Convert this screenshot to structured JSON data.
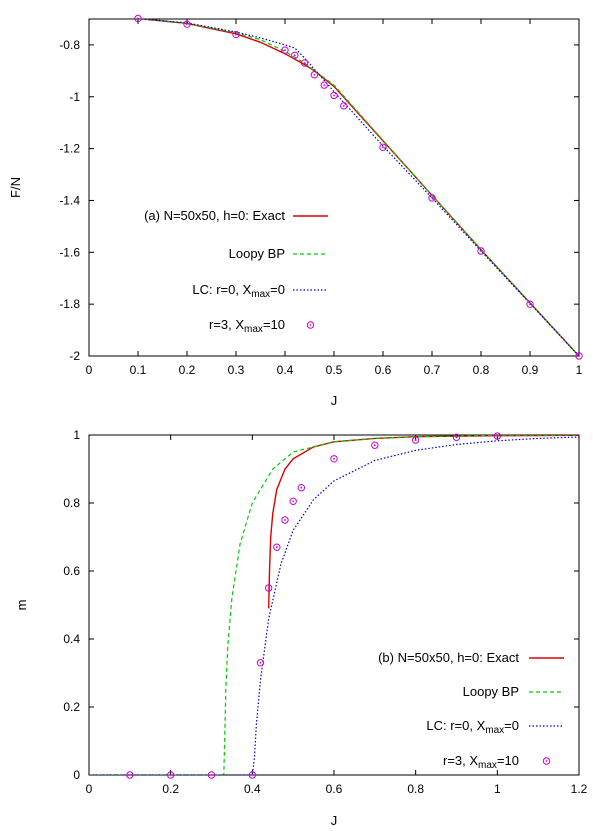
{
  "colors": {
    "exact": "#dd0000",
    "bp": "#00cc00",
    "lc0": "#0000cc",
    "lc3": "#cc00cc"
  },
  "chart_data": [
    {
      "type": "line",
      "panel": "a",
      "xlabel": "J",
      "ylabel": "F/N",
      "xlim": [
        0,
        1
      ],
      "ylim": [
        -2,
        -0.7
      ],
      "x_ticks": [
        "0",
        "0.1",
        "0.2",
        "0.3",
        "0.4",
        "0.5",
        "0.6",
        "0.7",
        "0.8",
        "0.9",
        "1"
      ],
      "x_tick_values": [
        0,
        0.1,
        0.2,
        0.3,
        0.4,
        0.5,
        0.6,
        0.7,
        0.8,
        0.9,
        1
      ],
      "y_ticks": [
        "-0.8",
        "-1",
        "-1.2",
        "-1.4",
        "-1.6",
        "-1.8",
        "-2"
      ],
      "y_tick_values": [
        -0.8,
        -1,
        -1.2,
        -1.4,
        -1.6,
        -1.8,
        -2
      ],
      "legend_position": "center-left",
      "series": [
        {
          "name": "(a) N=50x50, h=0: Exact",
          "style": "solid",
          "color_key": "exact",
          "x": [
            0,
            0.1,
            0.2,
            0.3,
            0.35,
            0.4,
            0.42,
            0.44,
            0.46,
            0.5,
            0.6,
            0.7,
            0.8,
            0.9,
            1.0
          ],
          "y": [
            -0.693,
            -0.698,
            -0.717,
            -0.757,
            -0.79,
            -0.834,
            -0.855,
            -0.876,
            -0.9,
            -0.96,
            -1.17,
            -1.38,
            -1.59,
            -1.795,
            -2.0
          ]
        },
        {
          "name": "Loopy BP",
          "style": "dashed",
          "color_key": "bp",
          "x": [
            0,
            0.1,
            0.2,
            0.3,
            0.35,
            0.4,
            0.44,
            0.5,
            0.6,
            0.7,
            0.8,
            0.9,
            1.0
          ],
          "y": [
            -0.693,
            -0.698,
            -0.717,
            -0.753,
            -0.78,
            -0.825,
            -0.87,
            -0.955,
            -1.168,
            -1.38,
            -1.59,
            -1.795,
            -2.0
          ]
        },
        {
          "name": "LC: r=0, X",
          "name_sub": "max",
          "name_tail": "=0",
          "style": "dotted",
          "color_key": "lc0",
          "x": [
            0,
            0.1,
            0.2,
            0.3,
            0.35,
            0.4,
            0.42,
            0.44,
            0.5,
            0.6,
            0.7,
            0.8,
            0.9,
            1.0
          ],
          "y": [
            -0.693,
            -0.698,
            -0.715,
            -0.75,
            -0.773,
            -0.8,
            -0.812,
            -0.85,
            -0.98,
            -1.19,
            -1.39,
            -1.595,
            -1.797,
            -2.0
          ]
        },
        {
          "name": "r=3, X",
          "name_sub": "max",
          "name_tail": "=10",
          "style": "circles",
          "color_key": "lc3",
          "x": [
            0.1,
            0.2,
            0.3,
            0.4,
            0.42,
            0.44,
            0.46,
            0.48,
            0.5,
            0.52,
            0.6,
            0.7,
            0.8,
            0.9,
            1.0
          ],
          "y": [
            -0.698,
            -0.72,
            -0.76,
            -0.82,
            -0.84,
            -0.87,
            -0.915,
            -0.955,
            -0.995,
            -1.035,
            -1.195,
            -1.39,
            -1.595,
            -1.8,
            -2.0
          ]
        }
      ]
    },
    {
      "type": "line",
      "panel": "b",
      "xlabel": "J",
      "ylabel": "m",
      "xlim": [
        0,
        1.2
      ],
      "ylim": [
        0,
        1
      ],
      "x_ticks": [
        "0",
        "0.2",
        "0.4",
        "0.6",
        "0.8",
        "1",
        "1.2"
      ],
      "x_tick_values": [
        0,
        0.2,
        0.4,
        0.6,
        0.8,
        1.0,
        1.2
      ],
      "y_ticks": [
        "0",
        "0.2",
        "0.4",
        "0.6",
        "0.8",
        "1"
      ],
      "y_tick_values": [
        0,
        0.2,
        0.4,
        0.6,
        0.8,
        1.0
      ],
      "legend_position": "bottom-right",
      "series": [
        {
          "name": "(b) N=50x50, h=0: Exact",
          "style": "solid",
          "color_key": "exact",
          "x": [
            0.44,
            0.442,
            0.445,
            0.45,
            0.46,
            0.48,
            0.5,
            0.55,
            0.6,
            0.7,
            0.8,
            1.0,
            1.2
          ],
          "y": [
            0.49,
            0.6,
            0.7,
            0.77,
            0.84,
            0.9,
            0.93,
            0.965,
            0.98,
            0.99,
            0.995,
            0.998,
            0.999
          ]
        },
        {
          "name": "Loopy BP",
          "style": "dashed",
          "color_key": "bp",
          "x": [
            0,
            0.33,
            0.3325,
            0.335,
            0.34,
            0.35,
            0.37,
            0.4,
            0.45,
            0.5,
            0.6,
            0.7,
            0.8,
            1.0,
            1.2
          ],
          "y": [
            0,
            0,
            0.12,
            0.25,
            0.38,
            0.52,
            0.68,
            0.8,
            0.9,
            0.95,
            0.98,
            0.99,
            0.995,
            0.999,
            1.0
          ]
        },
        {
          "name": "LC: r=0, X",
          "name_sub": "max",
          "name_tail": "=0",
          "style": "dotted",
          "color_key": "lc0",
          "x": [
            0,
            0.4,
            0.405,
            0.41,
            0.42,
            0.44,
            0.47,
            0.5,
            0.55,
            0.6,
            0.7,
            0.8,
            0.9,
            1.0,
            1.1,
            1.2
          ],
          "y": [
            0,
            0,
            0.05,
            0.15,
            0.28,
            0.46,
            0.62,
            0.72,
            0.81,
            0.865,
            0.925,
            0.955,
            0.972,
            0.983,
            0.99,
            0.994
          ]
        },
        {
          "name": "r=3, X",
          "name_sub": "max",
          "name_tail": "=10",
          "style": "circles",
          "color_key": "lc3",
          "x": [
            0.1,
            0.2,
            0.3,
            0.4,
            0.42,
            0.44,
            0.46,
            0.48,
            0.5,
            0.52,
            0.6,
            0.7,
            0.8,
            0.9,
            1.0
          ],
          "y": [
            0,
            0,
            0,
            0,
            0.33,
            0.55,
            0.67,
            0.75,
            0.805,
            0.845,
            0.93,
            0.97,
            0.985,
            0.993,
            0.997
          ]
        }
      ]
    }
  ]
}
